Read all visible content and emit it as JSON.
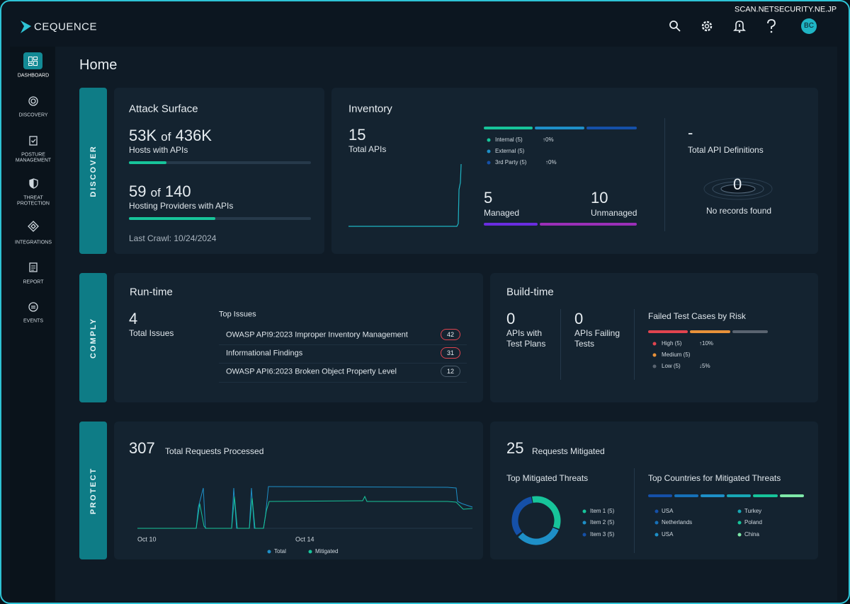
{
  "header": {
    "watermark": "SCAN.NETSECURITY.NE.JP",
    "brand": "CEQUENCE",
    "avatar": "BC"
  },
  "sidebar": {
    "items": [
      "DASHBOARD",
      "DISCOVERY",
      "POSTURE",
      "MANAGEMENT",
      "THREAT",
      "PROTECTION",
      "INTEGRATIONS",
      "REPORT",
      "EVENTS"
    ]
  },
  "page": {
    "title": "Home"
  },
  "sections": [
    "DISCOVER",
    "COMPLY",
    "PROTECT"
  ],
  "attack_surface": {
    "title": "Attack Surface",
    "hosts": {
      "count": "53K",
      "joiner": "of",
      "total": "436K",
      "label": "Hosts with APIs"
    },
    "providers": {
      "count": 59,
      "joiner": "of",
      "total": 140,
      "label": "Hosting Providers with APIs"
    },
    "last_crawl": "Last Crawl: 10/24/2024"
  },
  "inventory": {
    "title": "Inventory",
    "total": 15,
    "total_label": "Total APIs",
    "legend": [
      {
        "label": "Internal (5)",
        "change": "↑0%"
      },
      {
        "label": "External (5)"
      },
      {
        "label": "3rd Party (5)",
        "change": "↑0%"
      }
    ],
    "managed": {
      "value": 5,
      "label": "Managed"
    },
    "unmanaged": {
      "value": 10,
      "label": "Unmanaged"
    },
    "definitions": {
      "value": "-",
      "label": "Total API Definitions",
      "count": 0,
      "empty": "No records found"
    }
  },
  "runtime": {
    "title": "Run-time",
    "total": 4,
    "total_label": "Total Issues",
    "top_label": "Top Issues",
    "issues": [
      {
        "name": "OWASP API9:2023 Improper Inventory Management",
        "count": 42
      },
      {
        "name": "Informational Findings",
        "count": 31
      },
      {
        "name": "OWASP API6:2023 Broken Object Property Level",
        "count": 12
      }
    ]
  },
  "buildtime": {
    "title": "Build-time",
    "test_plans": {
      "value": 0,
      "label": "APIs with Test Plans"
    },
    "failing": {
      "value": 0,
      "label": "APIs Failing Tests"
    },
    "risk_title": "Failed Test Cases by Risk",
    "risk": [
      {
        "label": "High (5)",
        "change": "↑10%"
      },
      {
        "label": "Medium (5)"
      },
      {
        "label": "Low (5)",
        "change": "↓5%"
      }
    ]
  },
  "requests": {
    "total": 307,
    "total_label": "Total Requests Processed",
    "x_labels": [
      "Oct 10",
      "Oct 14"
    ],
    "legend": [
      "Total",
      "Mitigated"
    ]
  },
  "mitigated": {
    "total": 25,
    "total_label": "Requests Mitigated",
    "threats_title": "Top Mitigated Threats",
    "threats": [
      "Item 1 (5)",
      "Item 2 (5)",
      "Item 3 (5)"
    ],
    "countries_title": "Top Countries for Mitigated Threats",
    "countries": [
      "USA",
      "Netherlands",
      "USA",
      "Turkey",
      "Poland",
      "China"
    ]
  }
}
